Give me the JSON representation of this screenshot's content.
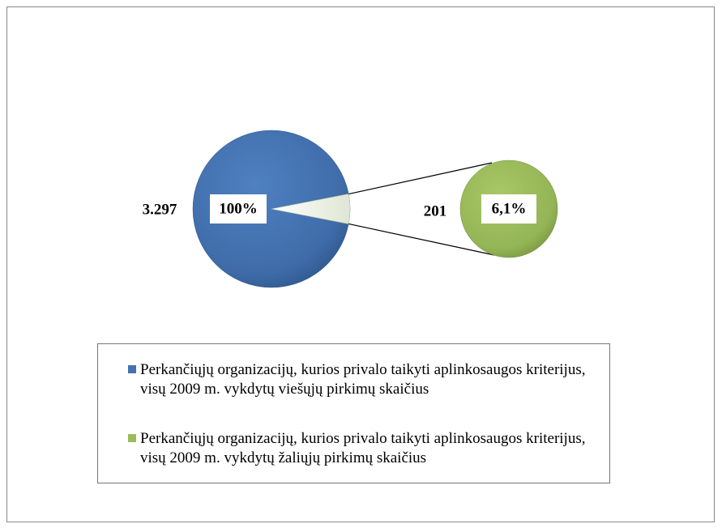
{
  "chart_data": {
    "type": "pie",
    "categories": [
      "Perkančiųjų organizacijų, kurios privalo taikyti aplinkosaugos kriterijus, visų 2009 m. vykdytų viešųjų  pirkimų skaičius",
      "Perkančiųjų organizacijų, kurios privalo taikyti aplinkosaugos kriterijus, visų 2009 m. vykdytų žaliųjų pirkimų skaičius"
    ],
    "colors": [
      "#4472b0",
      "#9bbb59"
    ],
    "values": [
      3297,
      201
    ],
    "value_labels": [
      "3.297",
      "201"
    ],
    "percents": [
      100,
      6.1
    ],
    "percent_labels": [
      "100%",
      "6,1%"
    ]
  }
}
